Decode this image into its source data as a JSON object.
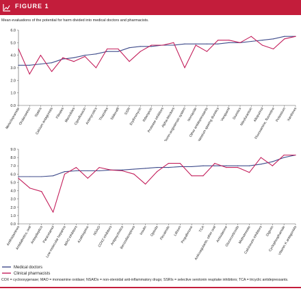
{
  "figure": {
    "label": "FIGURE 1",
    "caption": "Mean evaluations of the potential for harm divided into medical doctors and pharmacists.",
    "footnote": "COX = cyclooxygenase; MAO = monoamine oxidase; NSAIDs = non-steroidal anti-inflammatory drugs; SSRIs = selective serotonin reuptake inhibitors; TCA = tricyclic antidepressants.",
    "colors": {
      "accent": "#c31d3b",
      "medical_doctors": "#3d4a8a",
      "clinical_pharmacists": "#c31d5a"
    }
  },
  "chart_data": [
    {
      "type": "line",
      "ylim": [
        0,
        6
      ],
      "yticks": [
        "0.0",
        "1.0",
        "2.0",
        "3.0",
        "4.0",
        "5.0",
        "6.0"
      ],
      "grid": false,
      "categories": [
        "Metoclopramide",
        "Ondansetron",
        "Statins",
        "Calcium antagonists",
        "Fibrates",
        "Macrolides",
        "Ciprofloxacin",
        "Antimycotics",
        "Thiazides",
        "Sildenafil",
        "SSRI",
        "Erythromycin",
        "Rifampicin",
        "Protease inhibitors",
        "Alpha-blockers",
        "Renin-angiotensin system",
        "Isoniazide",
        "Other antidepressants",
        "Potassium sparing diuretics",
        "Verapamil",
        "Diuretics",
        "Nitrofurantoin",
        "Allopurinol",
        "Fluvoxamine, fluoxetine",
        "Potassium",
        "Xanthines"
      ],
      "series": [
        {
          "values": [
            3.2,
            3.2,
            3.3,
            3.4,
            3.7,
            3.8,
            4.0,
            4.1,
            4.3,
            4.3,
            4.6,
            4.7,
            4.7,
            4.8,
            4.8,
            4.9,
            4.9,
            4.9,
            4.9,
            5.0,
            5.0,
            5.1,
            5.2,
            5.3,
            5.5,
            5.5
          ]
        },
        {
          "values": [
            4.5,
            2.5,
            4.0,
            2.7,
            3.8,
            3.5,
            3.9,
            3.0,
            4.5,
            4.5,
            3.5,
            4.3,
            4.8,
            4.8,
            5.0,
            3.0,
            4.8,
            4.3,
            5.2,
            5.2,
            5.0,
            5.5,
            4.8,
            4.5,
            5.3,
            5.5
          ]
        }
      ]
    },
    {
      "type": "line",
      "ylim": [
        0,
        9
      ],
      "yticks": [
        "0.0",
        "1.0",
        "2.0",
        "3.0",
        "4.0",
        "5.0",
        "6.0",
        "7.0",
        "8.0",
        "9.0"
      ],
      "grid": false,
      "legend_position": "bottom-left",
      "categories": [
        "Antihistamines",
        "Antidiabetics, oral",
        "Antiepileptics",
        "Paracetamol",
        "Low molecular heparins",
        "MAO inhibitors",
        "Azathioprine",
        "NSAID",
        "COX2 inhibitors",
        "Antipsychotics",
        "Benzodiazepines",
        "Insulin",
        "Opioids",
        "Flecainide",
        "Lithium",
        "Propafenone",
        "TCA",
        "Anticoagulants, other oral",
        "Amiodarone",
        "Glucocorticoids",
        "Methotrexate",
        "Calcineurin inhibitors",
        "Digoxin",
        "Cyclophosphamide",
        "Vitamin K antagonists"
      ],
      "series": [
        {
          "name": "Medical doctors",
          "values": [
            5.7,
            5.7,
            5.7,
            5.8,
            6.3,
            6.4,
            6.4,
            6.4,
            6.5,
            6.5,
            6.6,
            6.7,
            6.8,
            6.8,
            6.9,
            6.9,
            7.0,
            7.0,
            7.0,
            7.0,
            7.0,
            7.2,
            7.5,
            8.0,
            8.3
          ]
        },
        {
          "name": "Clinical pharmacists",
          "values": [
            5.5,
            4.3,
            3.9,
            1.4,
            6.0,
            6.8,
            5.5,
            6.8,
            6.5,
            6.4,
            6.0,
            4.8,
            6.3,
            7.3,
            7.3,
            5.8,
            5.8,
            7.3,
            6.8,
            6.8,
            6.2,
            8.0,
            7.0,
            8.3,
            8.3
          ]
        }
      ]
    }
  ]
}
